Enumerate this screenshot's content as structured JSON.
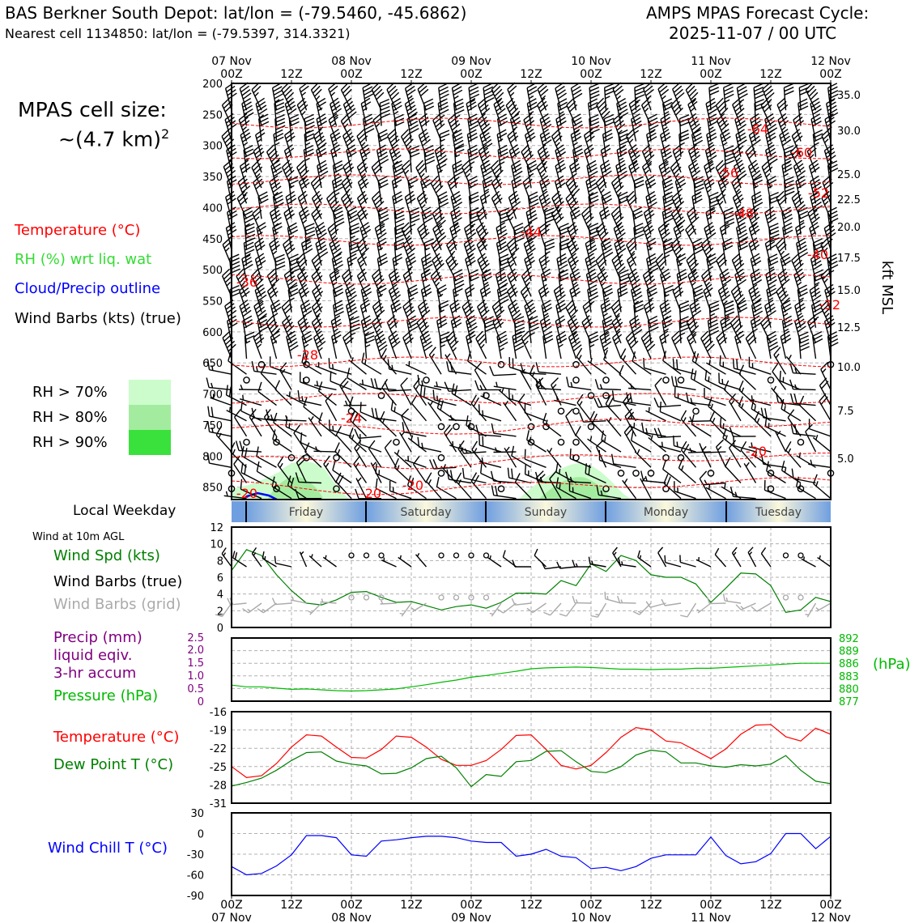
{
  "header": {
    "station": "BAS Berkner South Depot: lat/lon = (-79.5460, -45.6862)",
    "nearest": "Nearest cell 1134850: lat/lon = (-79.5397, 314.3321)",
    "model": "AMPS MPAS Forecast Cycle:",
    "cycle": "2025-11-07 / 00 UTC",
    "cell_size_label": "MPAS cell size:",
    "cell_size_value": "~(4.7 km)",
    "cell_size_exp": "2"
  },
  "legend": {
    "temperature": "Temperature (°C)",
    "rh": "RH (%) wrt liq. wat",
    "cloud": "Cloud/Precip outline",
    "wind": "Wind Barbs (kts) (true)",
    "rh70": "RH > 70%",
    "rh80": "RH > 80%",
    "rh90": "RH > 90%",
    "local_weekday": "Local Weekday",
    "wind10m": "Wind at 10m AGL",
    "wind_spd": "Wind Spd (kts)",
    "wind_barbs_true": "Wind Barbs (true)",
    "wind_barbs_grid": "Wind Barbs (grid)",
    "precip1": "Precip (mm)",
    "precip2": "liquid eqiv.",
    "precip3": "3-hr accum",
    "pressure": "Pressure (hPa)",
    "temp2": "Temperature (°C)",
    "dewpt": "Dew Point T (°C)",
    "windchill": "Wind Chill T (°C)"
  },
  "colors": {
    "temp": "#ff0000",
    "rh_text": "#33dd33",
    "cloud": "#0000ff",
    "wind_spd": "#008000",
    "precip": "#800080",
    "pressure": "#00bb00",
    "grid_barb": "#aaaaaa",
    "rh70": "#ccfccc",
    "rh80": "#a3ec9f",
    "rh90": "#3ae13c"
  },
  "chart_data": [
    {
      "type": "time-height",
      "top_time_labels": [
        {
          "top": "07 Nov",
          "bottom": "00Z"
        },
        {
          "top": "",
          "bottom": "12Z"
        },
        {
          "top": "08 Nov",
          "bottom": "00Z"
        },
        {
          "top": "",
          "bottom": "12Z"
        },
        {
          "top": "09 Nov",
          "bottom": "00Z"
        },
        {
          "top": "",
          "bottom": "12Z"
        },
        {
          "top": "10 Nov",
          "bottom": "00Z"
        },
        {
          "top": "",
          "bottom": "12Z"
        },
        {
          "top": "11 Nov",
          "bottom": "00Z"
        },
        {
          "top": "",
          "bottom": "12Z"
        },
        {
          "top": "12 Nov",
          "bottom": "00Z"
        }
      ],
      "pressure_ticks": [
        "200",
        "250",
        "300",
        "350",
        "400",
        "450",
        "500",
        "550",
        "600",
        "650",
        "700",
        "750",
        "800",
        "850"
      ],
      "kft_ticks": [
        "35.0",
        "30.0",
        "25.0",
        "22.5",
        "20.0",
        "17.5",
        "15.0",
        "12.5",
        "10.0",
        "7.5",
        "5.0"
      ],
      "right_axis_label": "kft MSL",
      "ylim_hpa": [
        870,
        200
      ],
      "temp_contour_labels": [
        "-64",
        "-60",
        "-56",
        "-52",
        "-48",
        "-44",
        "-40",
        "-36",
        "-32",
        "-28",
        "-24",
        "-20",
        "-20",
        "-20",
        "-20"
      ],
      "weekdays": [
        "Friday",
        "Saturday",
        "Sunday",
        "Monday",
        "Tuesday"
      ]
    },
    {
      "type": "line",
      "name": "wind",
      "ylim": [
        0,
        12
      ],
      "yticks": [
        "0",
        "2",
        "4",
        "6",
        "8",
        "10",
        "12"
      ],
      "x_hours": [
        0,
        3,
        6,
        9,
        12,
        15,
        18,
        21,
        24,
        27,
        30,
        33,
        36,
        39,
        42,
        45,
        48,
        51,
        54,
        57,
        60,
        63,
        66,
        69,
        72,
        75,
        78,
        81,
        84,
        87,
        90,
        93,
        96,
        99,
        102,
        105,
        108,
        111,
        114,
        117,
        120
      ],
      "wind_speed": [
        6.8,
        9.3,
        8.6,
        6.3,
        4.4,
        2.9,
        2.7,
        3.3,
        4.2,
        4.3,
        3.6,
        3.0,
        3.1,
        2.6,
        2.1,
        2.5,
        2.7,
        2.3,
        3.0,
        4.1,
        4.1,
        4.0,
        5.6,
        5.0,
        7.6,
        6.7,
        8.6,
        8.0,
        6.3,
        6.0,
        6.0,
        5.2,
        3.0,
        4.7,
        6.5,
        6.4,
        5.0,
        1.8,
        2.1,
        3.6,
        3.1
      ]
    },
    {
      "type": "line",
      "name": "precip-pressure",
      "precip_yticks": [
        "0",
        "0.5",
        "1.0",
        "1.5",
        "2.0",
        "2.5"
      ],
      "pressure_yticks": [
        "877",
        "880",
        "883",
        "886",
        "889",
        "892"
      ],
      "pressure_ylim": [
        877,
        892
      ],
      "pressure_axis_label": "(hPa)",
      "x_hours": [
        0,
        3,
        6,
        9,
        12,
        15,
        18,
        21,
        24,
        27,
        30,
        33,
        36,
        39,
        42,
        45,
        48,
        51,
        54,
        57,
        60,
        63,
        66,
        69,
        72,
        75,
        78,
        81,
        84,
        87,
        90,
        93,
        96,
        99,
        102,
        105,
        108,
        111,
        114,
        117,
        120
      ],
      "pressure": [
        880.8,
        880.4,
        880.4,
        880.1,
        879.8,
        879.9,
        879.7,
        879.5,
        879.4,
        879.5,
        879.7,
        879.9,
        880.4,
        880.9,
        881.5,
        882.0,
        882.7,
        883.1,
        883.6,
        884.1,
        884.7,
        884.9,
        885.0,
        885.1,
        885.0,
        884.8,
        884.6,
        884.6,
        884.5,
        884.6,
        884.6,
        884.8,
        884.8,
        885.0,
        885.2,
        885.4,
        885.6,
        885.8,
        886.0,
        886.0,
        886.0
      ]
    },
    {
      "type": "line",
      "name": "temperature",
      "ylim": [
        -31,
        -16
      ],
      "yticks": [
        "-16",
        "-19",
        "-22",
        "-25",
        "-28",
        "-31"
      ],
      "x_hours": [
        0,
        3,
        6,
        9,
        12,
        15,
        18,
        21,
        24,
        27,
        30,
        33,
        36,
        39,
        42,
        45,
        48,
        51,
        54,
        57,
        60,
        63,
        66,
        69,
        72,
        75,
        78,
        81,
        84,
        87,
        90,
        93,
        96,
        99,
        102,
        105,
        108,
        111,
        114,
        117,
        120
      ],
      "series": [
        {
          "name": "Temperature",
          "values": [
            -25.0,
            -26.8,
            -26.5,
            -24.5,
            -21.8,
            -19.8,
            -20.0,
            -21.8,
            -23.5,
            -23.6,
            -22.2,
            -20.0,
            -20.2,
            -21.8,
            -23.8,
            -24.8,
            -24.8,
            -24.0,
            -22.2,
            -19.9,
            -19.8,
            -22.2,
            -24.8,
            -25.4,
            -24.8,
            -22.7,
            -20.2,
            -18.6,
            -19.0,
            -20.8,
            -21.1,
            -22.4,
            -23.7,
            -22.1,
            -19.7,
            -18.2,
            -18.1,
            -20.1,
            -20.8,
            -18.7,
            -19.7
          ]
        },
        {
          "name": "Dew Point",
          "values": [
            -28.2,
            -27.6,
            -26.9,
            -25.6,
            -24.0,
            -22.7,
            -22.6,
            -24.1,
            -24.6,
            -24.9,
            -26.2,
            -26.1,
            -25.2,
            -23.7,
            -23.3,
            -25.2,
            -28.3,
            -26.3,
            -26.6,
            -24.2,
            -24.0,
            -22.5,
            -22.4,
            -24.2,
            -25.8,
            -26.0,
            -25.0,
            -23.1,
            -22.3,
            -22.6,
            -24.4,
            -24.4,
            -24.9,
            -25.1,
            -24.7,
            -24.9,
            -24.6,
            -23.2,
            -25.6,
            -27.4,
            -27.8
          ]
        }
      ]
    },
    {
      "type": "line",
      "name": "wind-chill",
      "ylim": [
        -90,
        30
      ],
      "yticks": [
        "30",
        "0",
        "-30",
        "-60",
        "-90"
      ],
      "x_ticks": [
        {
          "top": "00Z",
          "bottom": "07 Nov"
        },
        {
          "top": "12Z",
          "bottom": ""
        },
        {
          "top": "00Z",
          "bottom": "08 Nov"
        },
        {
          "top": "12Z",
          "bottom": ""
        },
        {
          "top": "00Z",
          "bottom": "09 Nov"
        },
        {
          "top": "12Z",
          "bottom": ""
        },
        {
          "top": "00Z",
          "bottom": "10 Nov"
        },
        {
          "top": "12Z",
          "bottom": ""
        },
        {
          "top": "00Z",
          "bottom": "11 Nov"
        },
        {
          "top": "12Z",
          "bottom": ""
        },
        {
          "top": "00Z",
          "bottom": "12 Nov"
        }
      ],
      "x_hours": [
        0,
        3,
        6,
        9,
        12,
        15,
        18,
        21,
        24,
        27,
        30,
        33,
        36,
        39,
        42,
        45,
        48,
        51,
        54,
        57,
        60,
        63,
        66,
        69,
        72,
        75,
        78,
        81,
        84,
        87,
        90,
        93,
        96,
        99,
        102,
        105,
        108,
        111,
        114,
        117,
        120
      ],
      "wind_chill": [
        -48,
        -60,
        -58,
        -47,
        -31,
        -3,
        -3,
        -6,
        -31,
        -33,
        -11,
        -9,
        -6,
        -4,
        -4,
        -6,
        -11,
        -13,
        -13,
        -33,
        -30,
        -23,
        -33,
        -35,
        -51,
        -49,
        -54,
        -48,
        -36,
        -31,
        -31,
        -31,
        -5,
        -32,
        -44,
        -41,
        -29,
        0,
        0,
        -22,
        -4
      ]
    }
  ]
}
